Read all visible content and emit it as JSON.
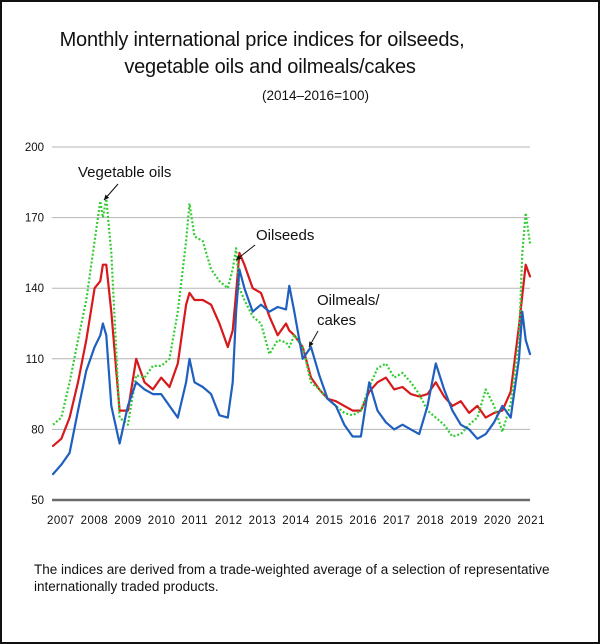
{
  "chart_data": {
    "type": "line",
    "title": "Monthly international price indices for oilseeds,",
    "title_line2": "vegetable oils and oilmeals/cakes",
    "subtitle": "(2014–2016=100)",
    "xlabel": "",
    "ylabel": "",
    "ylim": [
      50,
      200
    ],
    "yticks": [
      50,
      80,
      110,
      140,
      170,
      200
    ],
    "xlim": [
      2007.0,
      2021.33
    ],
    "xticks": [
      "2007",
      "2008",
      "2009",
      "2010",
      "2011",
      "2012",
      "2013",
      "2014",
      "2015",
      "2016",
      "2017",
      "2018",
      "2019",
      "2020",
      "2021"
    ],
    "grid": true,
    "annotations": [
      {
        "text": "Vegetable oils",
        "series": "Vegetable oils",
        "point_x": 2008.5,
        "point_y": 178
      },
      {
        "text": "Oilseeds",
        "series": "Oilseeds",
        "point_x": 2012.5,
        "point_y": 153
      },
      {
        "text": "Oilmeals/",
        "text2": "cakes",
        "series": "Oilmeals/cakes",
        "point_x": 2014.6,
        "point_y": 116
      }
    ],
    "x": [
      2007.0,
      2007.25,
      2007.5,
      2007.75,
      2008.0,
      2008.25,
      2008.42,
      2008.5,
      2008.6,
      2008.75,
      2009.0,
      2009.25,
      2009.5,
      2009.75,
      2010.0,
      2010.25,
      2010.5,
      2010.75,
      2011.0,
      2011.1,
      2011.25,
      2011.5,
      2011.75,
      2012.0,
      2012.25,
      2012.4,
      2012.5,
      2012.6,
      2012.75,
      2013.0,
      2013.25,
      2013.5,
      2013.75,
      2014.0,
      2014.1,
      2014.25,
      2014.5,
      2014.75,
      2015.0,
      2015.25,
      2015.5,
      2015.75,
      2016.0,
      2016.25,
      2016.5,
      2016.75,
      2017.0,
      2017.25,
      2017.5,
      2017.75,
      2018.0,
      2018.25,
      2018.5,
      2018.75,
      2019.0,
      2019.25,
      2019.5,
      2019.75,
      2020.0,
      2020.25,
      2020.5,
      2020.75,
      2021.0,
      2021.1,
      2021.2,
      2021.33
    ],
    "series": [
      {
        "name": "Oilseeds",
        "color": "#d7191c",
        "style": "solid",
        "values": [
          73,
          76,
          85,
          100,
          118,
          140,
          143,
          150,
          150,
          130,
          88,
          88,
          110,
          100,
          97,
          102,
          98,
          108,
          133,
          138,
          135,
          135,
          133,
          125,
          115,
          122,
          138,
          155,
          150,
          140,
          138,
          128,
          120,
          125,
          122,
          120,
          115,
          102,
          97,
          93,
          92,
          90,
          88,
          88,
          96,
          100,
          102,
          97,
          98,
          95,
          94,
          95,
          100,
          94,
          90,
          92,
          87,
          90,
          85,
          87,
          88,
          96,
          124,
          137,
          150,
          145
        ]
      },
      {
        "name": "Vegetable oils",
        "color": "#33cc33",
        "style": "dotted",
        "values": [
          82,
          85,
          100,
          118,
          135,
          160,
          177,
          170,
          178,
          155,
          85,
          82,
          103,
          102,
          107,
          107,
          110,
          130,
          160,
          176,
          162,
          160,
          148,
          143,
          140,
          148,
          157,
          140,
          135,
          128,
          125,
          112,
          118,
          117,
          115,
          120,
          115,
          100,
          97,
          93,
          90,
          87,
          86,
          88,
          98,
          106,
          108,
          102,
          104,
          100,
          95,
          88,
          85,
          82,
          77,
          78,
          82,
          85,
          97,
          90,
          79,
          91,
          118,
          155,
          172,
          159
        ]
      },
      {
        "name": "Oilmeals/cakes",
        "color": "#1f5fbf",
        "style": "solid",
        "values": [
          61,
          65,
          70,
          88,
          105,
          115,
          120,
          125,
          120,
          90,
          74,
          90,
          100,
          97,
          95,
          95,
          90,
          85,
          100,
          110,
          100,
          98,
          95,
          86,
          85,
          100,
          130,
          148,
          140,
          130,
          133,
          130,
          132,
          131,
          141,
          130,
          110,
          115,
          103,
          93,
          90,
          82,
          77,
          77,
          100,
          88,
          83,
          80,
          82,
          80,
          78,
          90,
          108,
          97,
          88,
          82,
          80,
          76,
          78,
          83,
          90,
          85,
          110,
          130,
          118,
          112
        ]
      }
    ]
  },
  "footnote": {
    "line1": "The indices are derived from a trade-weighted average of a selection of representative",
    "line2": "internationally traded products."
  }
}
